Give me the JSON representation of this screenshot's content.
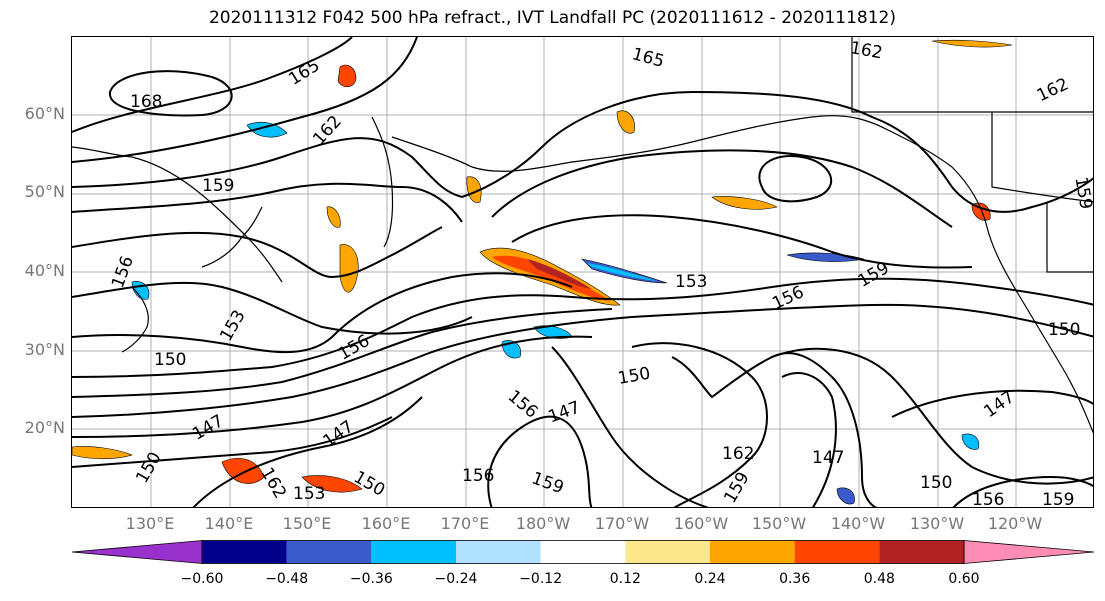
{
  "title": "2020111312 F042 500 hPa refract., IVT Landfall PC (2020111612 - 2020111812)",
  "map": {
    "lat_ticks": [
      "60°N",
      "50°N",
      "40°N",
      "30°N",
      "20°N"
    ],
    "lon_ticks": [
      "130°E",
      "140°E",
      "150°E",
      "160°E",
      "170°E",
      "180°W",
      "170°W",
      "160°W",
      "150°W",
      "140°W",
      "130°W",
      "120°W"
    ],
    "contour_labels": [
      "168",
      "165",
      "162",
      "159",
      "156",
      "153",
      "150",
      "147",
      "165",
      "162",
      "162",
      "159",
      "156",
      "153",
      "150",
      "147",
      "156",
      "159",
      "150",
      "147",
      "156",
      "162",
      "159",
      "150",
      "156",
      "159",
      "150",
      "147",
      "162",
      "159",
      "150",
      "147",
      "156",
      "153"
    ],
    "contour_levels": [
      147,
      150,
      153,
      156,
      159,
      162,
      165,
      168
    ]
  },
  "colorbar": {
    "colors": [
      "#9932cc",
      "#00008b",
      "#3a5bcc",
      "#00bfff",
      "#b0e2ff",
      "#ffffff",
      "#fde98b",
      "#ffa500",
      "#ff4500",
      "#b22222",
      "#ff8cb4"
    ],
    "tick_labels": [
      "−0.60",
      "−0.48",
      "−0.36",
      "−0.24",
      "−0.12",
      "0.12",
      "0.24",
      "0.36",
      "0.48",
      "0.60"
    ],
    "tick_values": [
      -0.6,
      -0.48,
      -0.36,
      -0.24,
      -0.12,
      0.12,
      0.24,
      0.36,
      0.48,
      0.6
    ]
  }
}
